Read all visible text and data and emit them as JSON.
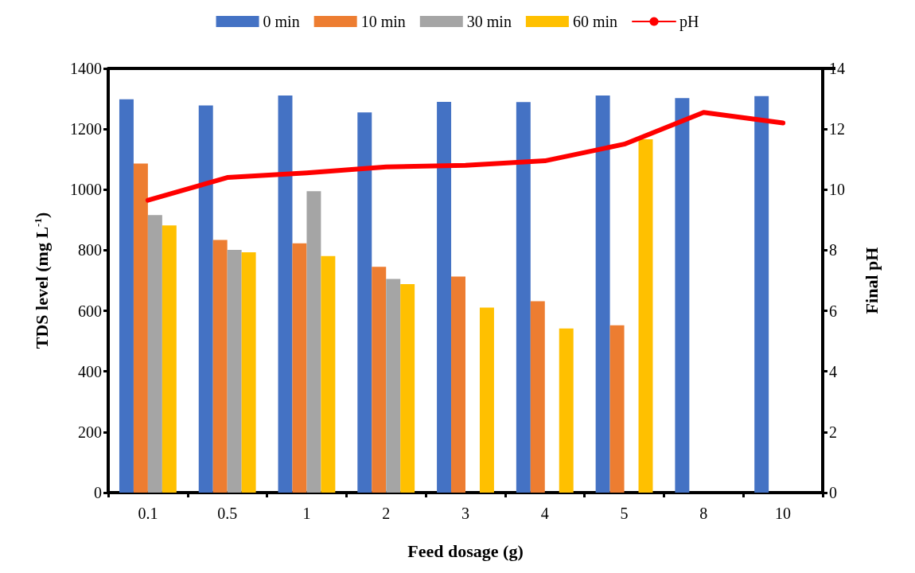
{
  "chart_data": {
    "type": "bar",
    "xlabel": "Feed dosage (g)",
    "ylabel": "TDS level (mg L$^{-1}$)",
    "y2label": "Final pH",
    "categories": [
      "0.1",
      "0.5",
      "1",
      "2",
      "3",
      "4",
      "5",
      "8",
      "10"
    ],
    "series": [
      {
        "name": "0 min",
        "color": "#4472c4",
        "values": [
          1298,
          1278,
          1311,
          1255,
          1290,
          1289,
          1311,
          1302,
          1309
        ]
      },
      {
        "name": "10 min",
        "color": "#ed7d31",
        "values": [
          1086,
          834,
          823,
          745,
          713,
          632,
          552,
          null,
          null
        ]
      },
      {
        "name": "30 min",
        "color": "#a5a5a5",
        "values": [
          916,
          801,
          995,
          705,
          null,
          null,
          null,
          null,
          null
        ]
      },
      {
        "name": "60 min",
        "color": "#ffc000",
        "values": [
          882,
          793,
          781,
          688,
          611,
          542,
          1166,
          null,
          null
        ]
      },
      {
        "name": "pH",
        "type": "line",
        "axis": "y2",
        "color": "#ff0000",
        "marker": "none",
        "values": [
          9.65,
          10.4,
          10.55,
          10.75,
          10.8,
          10.95,
          11.5,
          12.55,
          12.2
        ]
      }
    ],
    "ylim": [
      0,
      1400
    ],
    "yticks": [
      0,
      200,
      400,
      600,
      800,
      1000,
      1200,
      1400
    ],
    "y2lim": [
      0,
      14
    ],
    "y2ticks": [
      0,
      2,
      4,
      6,
      8,
      10,
      12,
      14
    ],
    "grid": false,
    "legend": "top"
  }
}
